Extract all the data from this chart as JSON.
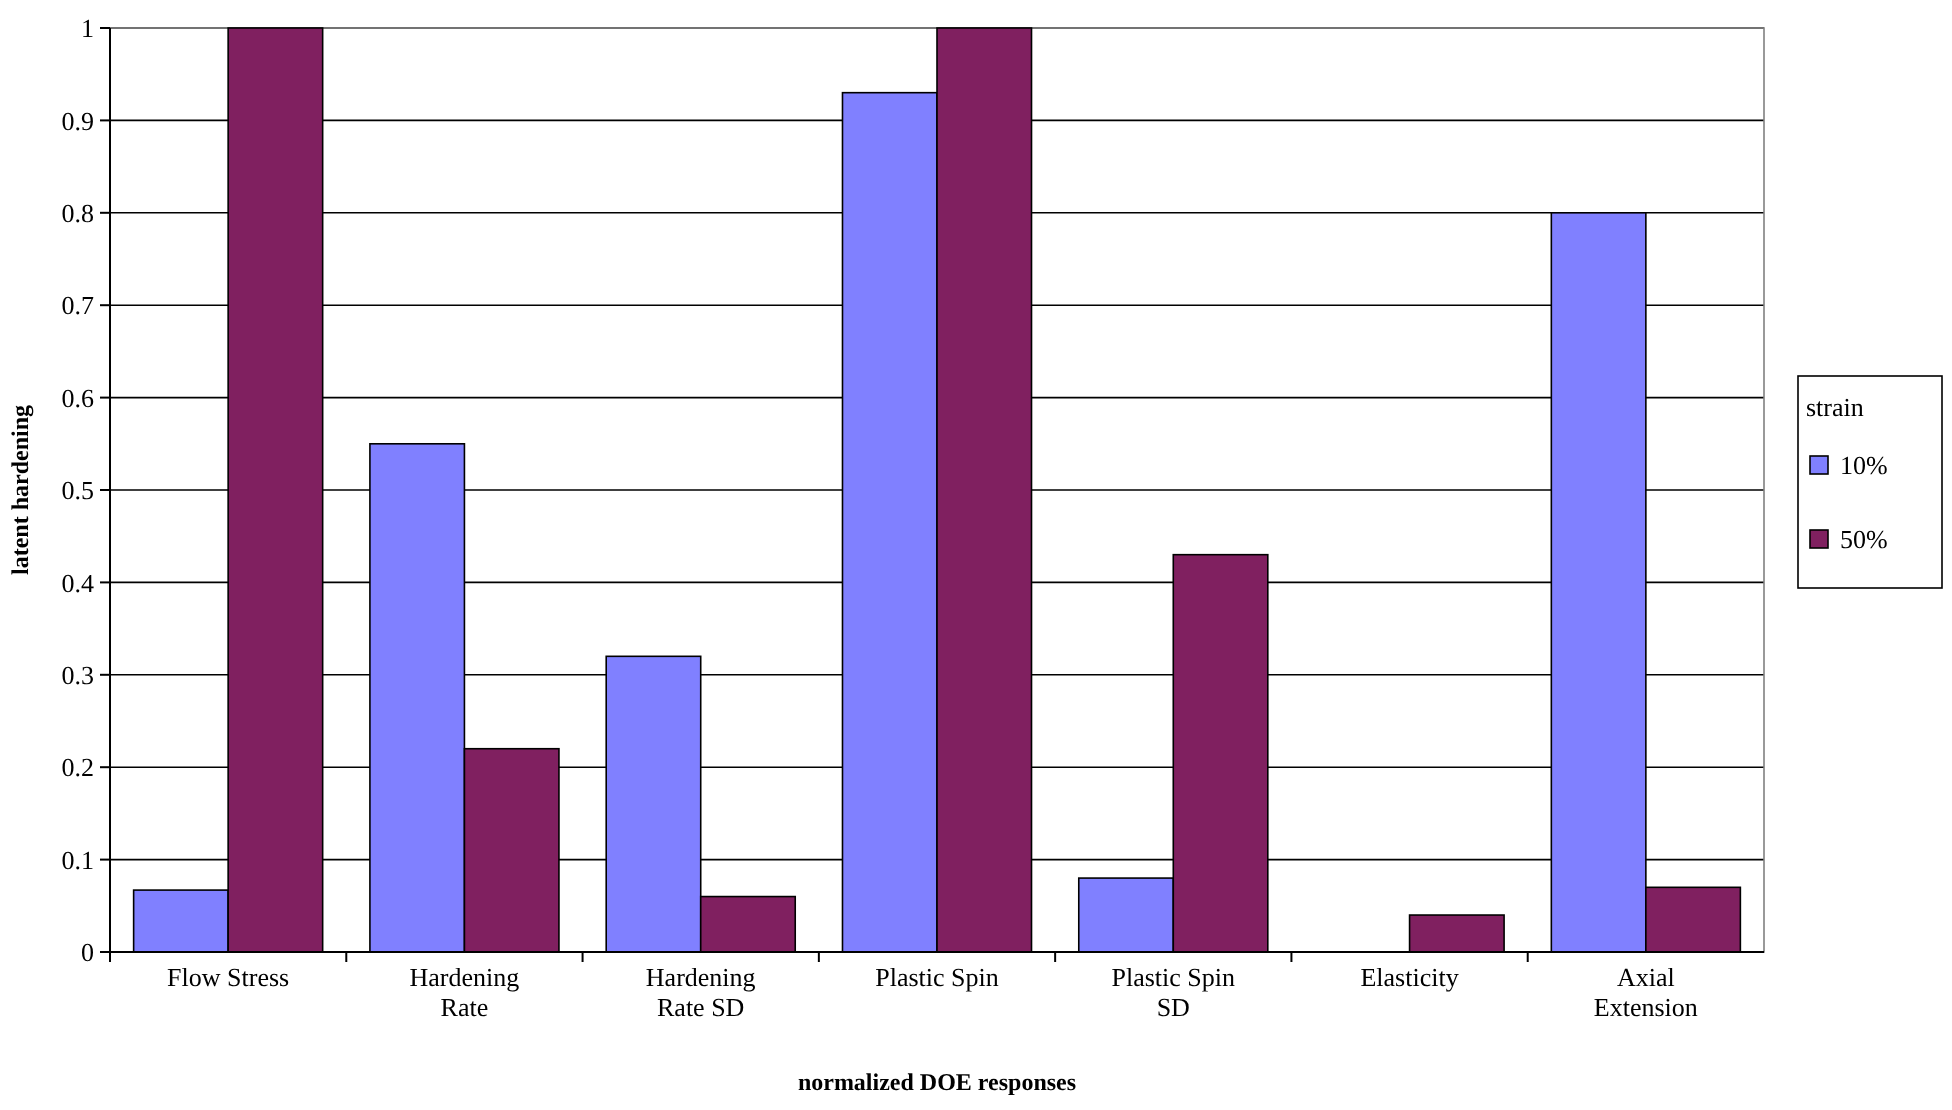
{
  "chart_data": {
    "type": "bar",
    "xlabel": "normalized DOE responses",
    "ylabel": "latent hardening",
    "legend_title": "strain",
    "categories": [
      "Flow Stress",
      "Hardening Rate",
      "Hardening Rate SD",
      "Plastic Spin",
      "Plastic Spin SD",
      "Elasticity",
      "Axial Extension"
    ],
    "series": [
      {
        "name": "10%",
        "color": "#8080ff",
        "values": [
          0.067,
          0.55,
          0.32,
          0.93,
          0.08,
          null,
          0.8
        ]
      },
      {
        "name": "50%",
        "color": "#802060",
        "values": [
          1,
          0.22,
          0.06,
          1,
          0.43,
          0.04,
          0.07
        ]
      }
    ],
    "ylim": [
      0,
      1
    ],
    "yticks": [
      0,
      0.1,
      0.2,
      0.3,
      0.4,
      0.5,
      0.6,
      0.7,
      0.8,
      0.9,
      1
    ],
    "grid": "y",
    "legend": "right"
  }
}
